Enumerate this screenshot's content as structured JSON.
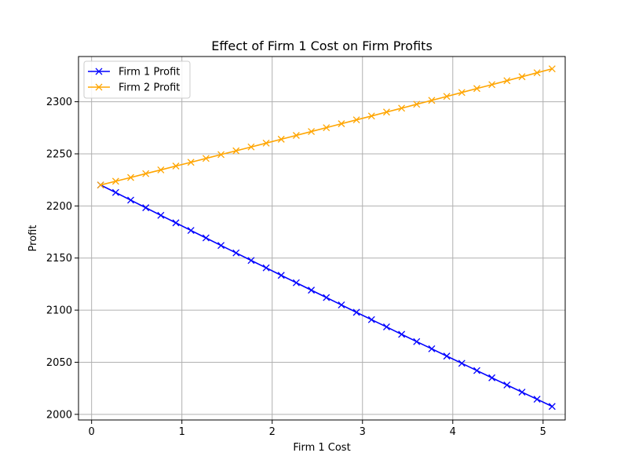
{
  "chart_data": {
    "type": "line",
    "title": "Effect of Firm 1 Cost on Firm Profits",
    "xlabel": "Firm 1 Cost",
    "ylabel": "Profit",
    "xlim": [
      -0.145,
      5.245
    ],
    "ylim": [
      1994.6,
      2343.4
    ],
    "xticks": [
      0,
      1,
      2,
      3,
      4,
      5
    ],
    "yticks": [
      2000,
      2050,
      2100,
      2150,
      2200,
      2250,
      2300
    ],
    "grid": true,
    "legend_position": "upper left",
    "x": [
      0.1,
      0.2667,
      0.4333,
      0.6,
      0.7667,
      0.9333,
      1.1,
      1.2667,
      1.4333,
      1.6,
      1.7667,
      1.9333,
      2.1,
      2.2667,
      2.4333,
      2.6,
      2.7667,
      2.9333,
      3.1,
      3.2667,
      3.4333,
      3.6,
      3.7667,
      3.9333,
      4.1,
      4.2667,
      4.4333,
      4.6,
      4.7667,
      4.9333,
      5.1
    ],
    "series": [
      {
        "name": "Firm 1 Profit",
        "color": "#0000ff",
        "marker": "x",
        "values": [
          2220.1,
          2212.9,
          2205.6,
          2198.3,
          2191.0,
          2183.8,
          2176.5,
          2169.3,
          2162.1,
          2154.9,
          2147.7,
          2140.6,
          2133.4,
          2126.3,
          2119.2,
          2112.1,
          2105.0,
          2097.9,
          2090.9,
          2083.9,
          2076.8,
          2069.8,
          2062.9,
          2055.9,
          2049.0,
          2042.0,
          2035.1,
          2028.2,
          2021.3,
          2014.5,
          2007.6
        ]
      },
      {
        "name": "Firm 2 Profit",
        "color": "#ffa500",
        "marker": "x",
        "values": [
          2220.1,
          2223.7,
          2227.3,
          2231.0,
          2234.6,
          2238.3,
          2241.9,
          2245.6,
          2249.3,
          2252.9,
          2256.6,
          2260.3,
          2264.0,
          2267.7,
          2271.4,
          2275.1,
          2278.9,
          2282.6,
          2286.3,
          2290.1,
          2293.8,
          2297.6,
          2301.3,
          2305.1,
          2308.9,
          2312.7,
          2316.4,
          2320.2,
          2324.0,
          2327.8,
          2331.6
        ]
      }
    ]
  }
}
